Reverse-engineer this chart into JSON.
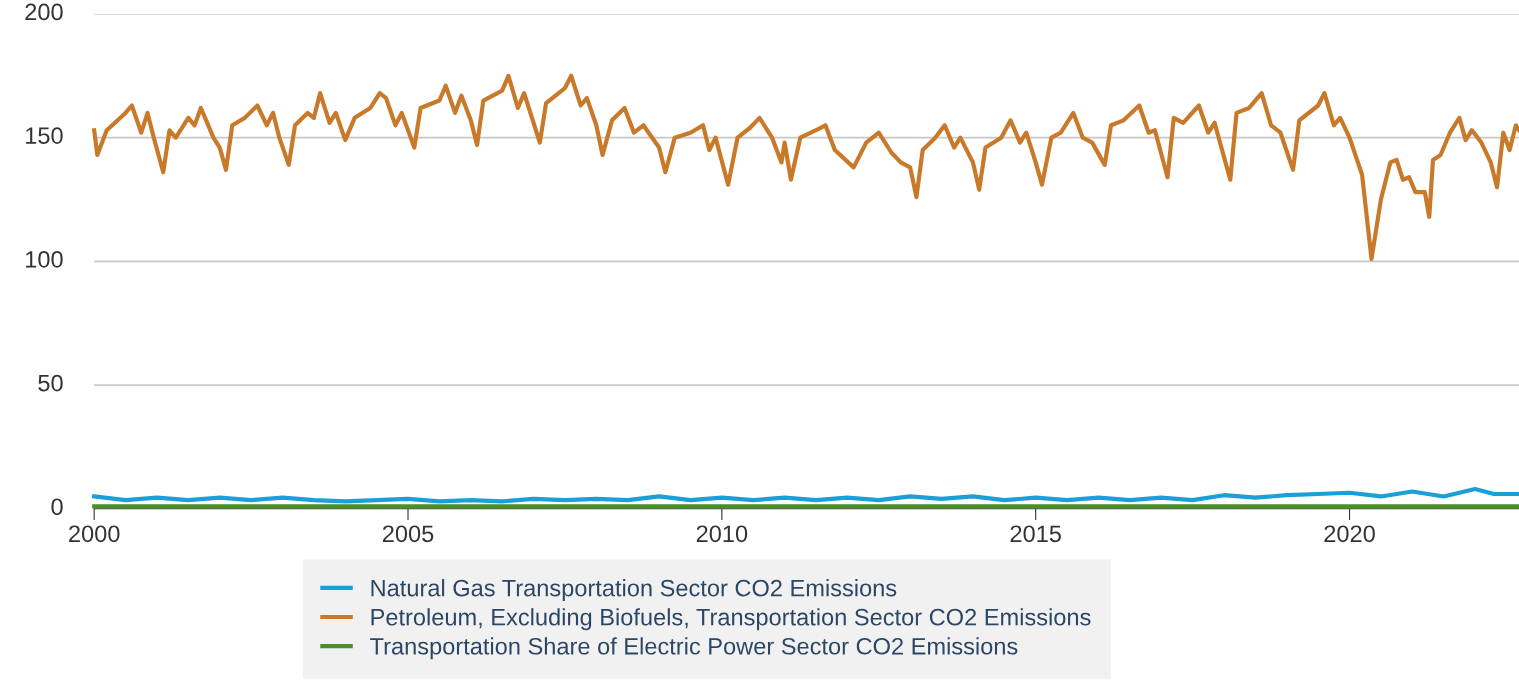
{
  "chart_data": {
    "type": "line",
    "xlim": [
      2000,
      2022.7
    ],
    "xticks": [
      2000,
      2005,
      2010,
      2015,
      2020
    ],
    "ylim": [
      0,
      200
    ],
    "yticks": [
      0,
      50,
      100,
      150,
      200
    ],
    "grid": "y",
    "legend": "bottom",
    "marker": "none",
    "line_style": "solid",
    "series": [
      {
        "name": "Natural Gas Transportation Sector CO2 Emissions",
        "color": "#1a9fd6",
        "x": [
          2000,
          2000.5,
          2001,
          2001.5,
          2002,
          2002.5,
          2003,
          2003.5,
          2004,
          2004.5,
          2005,
          2005.5,
          2006,
          2006.5,
          2007,
          2007.5,
          2008,
          2008.5,
          2009,
          2009.5,
          2010,
          2010.5,
          2011,
          2011.5,
          2012,
          2012.5,
          2013,
          2013.5,
          2014,
          2014.5,
          2015,
          2015.5,
          2016,
          2016.5,
          2017,
          2017.5,
          2018,
          2018.5,
          2019,
          2019.5,
          2020,
          2020.5,
          2021,
          2021.5,
          2022,
          2022.3,
          2022.7
        ],
        "values": [
          5,
          3.5,
          4.5,
          3.5,
          4.5,
          3.5,
          4.5,
          3.5,
          3,
          3.5,
          4,
          3,
          3.5,
          3,
          4,
          3.5,
          4,
          3.5,
          5,
          3.5,
          4.5,
          3.5,
          4.5,
          3.5,
          4.5,
          3.5,
          5,
          4,
          5,
          3.5,
          4.5,
          3.5,
          4.5,
          3.5,
          4.5,
          3.5,
          5.5,
          4.5,
          5.5,
          6,
          6.5,
          5,
          7,
          5,
          8,
          6,
          6
        ]
      },
      {
        "name": "Petroleum, Excluding Biofuels, Transportation Sector CO2 Emissions",
        "color": "#c87a2a",
        "x": [
          2000,
          2000.05,
          2000.2,
          2000.5,
          2000.6,
          2000.75,
          2000.85,
          2000.95,
          2001.1,
          2001.2,
          2001.3,
          2001.5,
          2001.6,
          2001.7,
          2001.9,
          2002.0,
          2002.1,
          2002.2,
          2002.4,
          2002.6,
          2002.75,
          2002.85,
          2002.95,
          2003.1,
          2003.2,
          2003.4,
          2003.5,
          2003.6,
          2003.75,
          2003.85,
          2004.0,
          2004.15,
          2004.4,
          2004.55,
          2004.65,
          2004.8,
          2004.9,
          2005.1,
          2005.2,
          2005.5,
          2005.6,
          2005.75,
          2005.85,
          2006.0,
          2006.1,
          2006.2,
          2006.5,
          2006.6,
          2006.75,
          2006.85,
          2007.1,
          2007.2,
          2007.5,
          2007.6,
          2007.75,
          2007.85,
          2008.0,
          2008.1,
          2008.25,
          2008.45,
          2008.6,
          2008.75,
          2009.0,
          2009.1,
          2009.25,
          2009.5,
          2009.7,
          2009.8,
          2009.9,
          2010.1,
          2010.25,
          2010.45,
          2010.6,
          2010.8,
          2010.95,
          2011.0,
          2011.1,
          2011.25,
          2011.5,
          2011.65,
          2011.8,
          2012.1,
          2012.3,
          2012.5,
          2012.7,
          2012.85,
          2013.0,
          2013.1,
          2013.2,
          2013.4,
          2013.55,
          2013.7,
          2013.8,
          2014.0,
          2014.1,
          2014.2,
          2014.45,
          2014.6,
          2014.75,
          2014.85,
          2015.0,
          2015.1,
          2015.25,
          2015.4,
          2015.6,
          2015.75,
          2015.9,
          2016.1,
          2016.2,
          2016.4,
          2016.65,
          2016.8,
          2016.9,
          2017.1,
          2017.2,
          2017.35,
          2017.6,
          2017.75,
          2017.85,
          2018.1,
          2018.2,
          2018.4,
          2018.6,
          2018.75,
          2018.9,
          2019.1,
          2019.2,
          2019.5,
          2019.6,
          2019.75,
          2019.85,
          2020.0,
          2020.2,
          2020.35,
          2020.5,
          2020.65,
          2020.75,
          2020.85,
          2020.95,
          2021.05,
          2021.2,
          2021.27,
          2021.33,
          2021.45,
          2021.6,
          2021.75,
          2021.85,
          2021.95,
          2022.1,
          2022.25,
          2022.35,
          2022.45,
          2022.55,
          2022.65,
          2022.7
        ],
        "values": [
          153,
          143,
          153,
          160,
          163,
          152,
          160,
          150,
          136,
          153,
          150,
          158,
          155,
          162,
          150,
          146,
          137,
          155,
          158,
          163,
          155,
          160,
          150,
          139,
          155,
          160,
          158,
          168,
          156,
          160,
          149,
          158,
          162,
          168,
          166,
          155,
          160,
          146,
          162,
          165,
          171,
          160,
          167,
          157,
          147,
          165,
          169,
          175,
          162,
          168,
          148,
          164,
          170,
          175,
          163,
          166,
          155,
          143,
          157,
          162,
          152,
          155,
          146,
          136,
          150,
          152,
          155,
          145,
          150,
          131,
          150,
          154,
          158,
          150,
          140,
          148,
          133,
          150,
          153,
          155,
          145,
          138,
          148,
          152,
          144,
          140,
          138,
          126,
          145,
          150,
          155,
          146,
          150,
          140,
          129,
          146,
          150,
          157,
          148,
          152,
          140,
          131,
          150,
          152,
          160,
          150,
          148,
          139,
          155,
          157,
          163,
          152,
          153,
          134,
          158,
          156,
          163,
          152,
          156,
          133,
          160,
          162,
          168,
          155,
          152,
          137,
          157,
          163,
          168,
          155,
          158,
          150,
          135,
          101,
          125,
          140,
          141,
          133,
          134,
          128,
          128,
          118,
          141,
          143,
          152,
          158,
          149,
          153,
          148,
          140,
          130,
          152,
          145,
          155,
          153
        ]
      },
      {
        "name": "Transportation Share of Electric Power Sector CO2 Emissions",
        "color": "#4a8f2a",
        "x": [
          2000,
          2005,
          2010,
          2015,
          2020,
          2022.7
        ],
        "values": [
          1,
          1,
          1,
          1,
          1,
          1
        ]
      }
    ]
  }
}
